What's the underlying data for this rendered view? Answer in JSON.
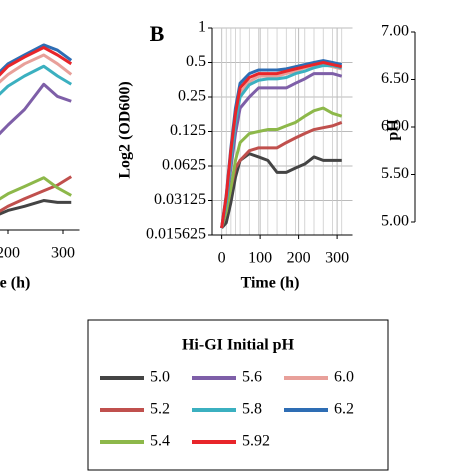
{
  "chart_data": [
    {
      "type": "line",
      "log_y": true,
      "xlabel": "e (h)",
      "x": [
        180,
        200,
        230,
        265,
        290,
        315
      ],
      "xlim": [
        0,
        330
      ],
      "xticks": [
        200,
        300
      ],
      "ylim": [
        0.015625,
        1
      ],
      "series": [
        {
          "color": "#444444",
          "values": [
            0.021,
            0.023,
            0.025,
            0.028,
            0.027,
            0.027
          ]
        },
        {
          "color": "#c0504d",
          "values": [
            0.022,
            0.025,
            0.029,
            0.034,
            0.038,
            0.045
          ]
        },
        {
          "color": "#8db84a",
          "values": [
            0.028,
            0.032,
            0.037,
            0.044,
            0.036,
            0.031
          ]
        },
        {
          "color": "#7e5fa8",
          "values": [
            0.1,
            0.125,
            0.17,
            0.28,
            0.22,
            0.2
          ]
        },
        {
          "color": "#e8a09a",
          "values": [
            0.28,
            0.34,
            0.42,
            0.5,
            0.42,
            0.34
          ]
        },
        {
          "color": "#3bb0c0",
          "values": [
            0.22,
            0.27,
            0.33,
            0.4,
            0.33,
            0.28
          ]
        },
        {
          "color": "#2e6db4",
          "values": [
            0.34,
            0.42,
            0.5,
            0.61,
            0.55,
            0.45
          ]
        },
        {
          "color": "#e8252a",
          "values": [
            0.32,
            0.4,
            0.48,
            0.58,
            0.5,
            0.42
          ]
        }
      ]
    },
    {
      "type": "line",
      "log_y": true,
      "panel_label": "B",
      "xlabel": "Time (h)",
      "ylabel": "Log2 (OD600)",
      "legend_title": "Hi-GI Initial pH",
      "grid": true,
      "x": [
        0,
        12,
        24,
        36,
        48,
        72,
        96,
        120,
        144,
        168,
        192,
        216,
        240,
        264,
        288,
        312
      ],
      "xlim": [
        -25,
        340
      ],
      "xticks": [
        0,
        100,
        200,
        300
      ],
      "ylim": [
        0.015625,
        1
      ],
      "yticks": [
        1,
        0.5,
        0.25,
        0.125,
        0.0625,
        0.03125,
        0.015625
      ],
      "series": [
        {
          "name": "5.0",
          "color": "#444444",
          "values": [
            0.018,
            0.02,
            0.03,
            0.05,
            0.07,
            0.08,
            0.075,
            0.07,
            0.055,
            0.055,
            0.06,
            0.065,
            0.075,
            0.07,
            0.07,
            0.07
          ]
        },
        {
          "name": "5.2",
          "color": "#c0504d",
          "values": [
            0.018,
            0.025,
            0.04,
            0.06,
            0.07,
            0.085,
            0.09,
            0.09,
            0.09,
            0.1,
            0.11,
            0.12,
            0.13,
            0.135,
            0.14,
            0.15
          ]
        },
        {
          "name": "5.4",
          "color": "#8db84a",
          "values": [
            0.018,
            0.025,
            0.04,
            0.07,
            0.1,
            0.12,
            0.125,
            0.13,
            0.13,
            0.14,
            0.15,
            0.17,
            0.19,
            0.2,
            0.18,
            0.17
          ]
        },
        {
          "name": "5.6",
          "color": "#7e5fa8",
          "values": [
            0.018,
            0.03,
            0.06,
            0.12,
            0.2,
            0.25,
            0.3,
            0.3,
            0.3,
            0.3,
            0.33,
            0.36,
            0.4,
            0.4,
            0.4,
            0.38
          ]
        },
        {
          "name": "6.0",
          "color": "#e8a09a",
          "values": [
            0.018,
            0.032,
            0.075,
            0.16,
            0.27,
            0.34,
            0.38,
            0.38,
            0.38,
            0.4,
            0.42,
            0.45,
            0.47,
            0.48,
            0.46,
            0.44
          ]
        },
        {
          "name": "5.8",
          "color": "#3bb0c0",
          "values": [
            0.018,
            0.03,
            0.07,
            0.15,
            0.25,
            0.32,
            0.35,
            0.36,
            0.36,
            0.37,
            0.4,
            0.42,
            0.45,
            0.47,
            0.47,
            0.45
          ]
        },
        {
          "name": "6.2",
          "color": "#2e6db4",
          "values": [
            0.018,
            0.035,
            0.09,
            0.2,
            0.33,
            0.4,
            0.43,
            0.43,
            0.43,
            0.44,
            0.46,
            0.48,
            0.5,
            0.52,
            0.5,
            0.48
          ]
        },
        {
          "name": "5.92",
          "color": "#e8252a",
          "values": [
            0.018,
            0.034,
            0.085,
            0.18,
            0.3,
            0.37,
            0.4,
            0.4,
            0.4,
            0.42,
            0.44,
            0.46,
            0.48,
            0.5,
            0.48,
            0.46
          ]
        }
      ]
    },
    {
      "type": "line",
      "ylabel": "pH",
      "ylim": [
        5,
        7
      ],
      "yticks": [
        {
          "value": 7,
          "label": "7.00"
        },
        {
          "value": 6.5,
          "label": "6.50"
        },
        {
          "value": 6,
          "label": "6.00"
        },
        {
          "value": 5.5,
          "label": "5.50"
        },
        {
          "value": 5,
          "label": "5.00"
        }
      ],
      "series": []
    }
  ]
}
